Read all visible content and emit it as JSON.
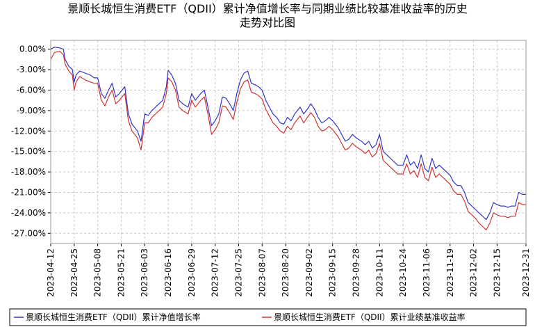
{
  "chart_data": {
    "type": "line",
    "title": "景顺长城恒生消费ETF（QDII）累计净值增长率与同期业绩比较基准收益率的历史走势对比图",
    "title_lines": [
      "景顺长城恒生消费ETF（QDII）累计净值增长率与同期业绩比较基准收益率的历史",
      "走势对比图"
    ],
    "x_ticks": [
      "2023-04-12",
      "2023-04-25",
      "2023-05-08",
      "2023-05-21",
      "2023-06-03",
      "2023-06-16",
      "2023-06-29",
      "2023-07-12",
      "2023-07-25",
      "2023-08-07",
      "2023-08-20",
      "2023-09-02",
      "2023-09-15",
      "2023-09-28",
      "2023-10-11",
      "2023-10-24",
      "2023-11-06",
      "2023-11-19",
      "2023-12-02",
      "2023-12-15",
      "2023-12-31"
    ],
    "y_ticks": [
      "0.00%",
      "-3.00%",
      "-6.00%",
      "-9.00%",
      "-12.00%",
      "-15.00%",
      "-18.00%",
      "-21.00%",
      "-24.00%",
      "-27.00%"
    ],
    "xlim": [
      "2023-04-12",
      "2023-12-31"
    ],
    "ylim": [
      -28.5,
      1.3
    ],
    "grid": true,
    "legend_position": "bottom",
    "series": [
      {
        "name": "景顺长城恒生消费ETF（QDII）累计净值增长率",
        "color": "#3333cc",
        "points": [
          [
            "2023-04-12",
            0.0
          ],
          [
            "2023-04-14",
            0.3
          ],
          [
            "2023-04-17",
            0.2
          ],
          [
            "2023-04-19",
            0.0
          ],
          [
            "2023-04-20",
            -1.5
          ],
          [
            "2023-04-22",
            -2.5
          ],
          [
            "2023-04-24",
            -3.0
          ],
          [
            "2023-04-25",
            -4.8
          ],
          [
            "2023-04-26",
            -3.8
          ],
          [
            "2023-04-28",
            -3.2
          ],
          [
            "2023-05-01",
            -3.5
          ],
          [
            "2023-05-04",
            -3.8
          ],
          [
            "2023-05-06",
            -4.2
          ],
          [
            "2023-05-08",
            -4.2
          ],
          [
            "2023-05-10",
            -6.5
          ],
          [
            "2023-05-12",
            -7.2
          ],
          [
            "2023-05-14",
            -6.0
          ],
          [
            "2023-05-16",
            -5.0
          ],
          [
            "2023-05-18",
            -7.0
          ],
          [
            "2023-05-20",
            -6.5
          ],
          [
            "2023-05-23",
            -5.5
          ],
          [
            "2023-05-25",
            -9.5
          ],
          [
            "2023-05-27",
            -11.0
          ],
          [
            "2023-05-30",
            -12.0
          ],
          [
            "2023-06-01",
            -13.5
          ],
          [
            "2023-06-03",
            -9.5
          ],
          [
            "2023-06-05",
            -9.7
          ],
          [
            "2023-06-07",
            -9.0
          ],
          [
            "2023-06-09",
            -8.5
          ],
          [
            "2023-06-11",
            -8.0
          ],
          [
            "2023-06-13",
            -7.5
          ],
          [
            "2023-06-15",
            -5.5
          ],
          [
            "2023-06-16",
            -3.1
          ],
          [
            "2023-06-18",
            -3.8
          ],
          [
            "2023-06-20",
            -5.0
          ],
          [
            "2023-06-22",
            -7.5
          ],
          [
            "2023-06-24",
            -8.0
          ],
          [
            "2023-06-27",
            -8.5
          ],
          [
            "2023-06-29",
            -6.5
          ],
          [
            "2023-07-01",
            -7.5
          ],
          [
            "2023-07-04",
            -6.5
          ],
          [
            "2023-07-06",
            -6.0
          ],
          [
            "2023-07-08",
            -8.5
          ],
          [
            "2023-07-10",
            -11.2
          ],
          [
            "2023-07-12",
            -10.5
          ],
          [
            "2023-07-14",
            -9.5
          ],
          [
            "2023-07-16",
            -7.0
          ],
          [
            "2023-07-18",
            -7.2
          ],
          [
            "2023-07-20",
            -8.0
          ],
          [
            "2023-07-22",
            -9.0
          ],
          [
            "2023-07-24",
            -6.5
          ],
          [
            "2023-07-26",
            -4.5
          ],
          [
            "2023-07-28",
            -3.5
          ],
          [
            "2023-07-30",
            -3.2
          ],
          [
            "2023-08-01",
            -5.0
          ],
          [
            "2023-08-03",
            -5.2
          ],
          [
            "2023-08-05",
            -5.5
          ],
          [
            "2023-08-07",
            -6.0
          ],
          [
            "2023-08-09",
            -7.5
          ],
          [
            "2023-08-11",
            -8.5
          ],
          [
            "2023-08-13",
            -9.5
          ],
          [
            "2023-08-15",
            -10.0
          ],
          [
            "2023-08-17",
            -10.8
          ],
          [
            "2023-08-19",
            -11.0
          ],
          [
            "2023-08-21",
            -10.0
          ],
          [
            "2023-08-23",
            -10.5
          ],
          [
            "2023-08-25",
            -9.5
          ],
          [
            "2023-08-28",
            -8.5
          ],
          [
            "2023-08-30",
            -9.5
          ],
          [
            "2023-09-01",
            -8.8
          ],
          [
            "2023-09-03",
            -8.0
          ],
          [
            "2023-09-05",
            -8.8
          ],
          [
            "2023-09-07",
            -10.0
          ],
          [
            "2023-09-09",
            -10.8
          ],
          [
            "2023-09-11",
            -10.5
          ],
          [
            "2023-09-13",
            -10.0
          ],
          [
            "2023-09-15",
            -10.5
          ],
          [
            "2023-09-18",
            -11.5
          ],
          [
            "2023-09-20",
            -12.5
          ],
          [
            "2023-09-22",
            -13.5
          ],
          [
            "2023-09-24",
            -13.2
          ],
          [
            "2023-09-26",
            -12.5
          ],
          [
            "2023-09-28",
            -13.0
          ],
          [
            "2023-10-01",
            -13.5
          ],
          [
            "2023-10-03",
            -14.0
          ],
          [
            "2023-10-05",
            -13.5
          ],
          [
            "2023-10-07",
            -14.5
          ],
          [
            "2023-10-09",
            -14.0
          ],
          [
            "2023-10-11",
            -12.5
          ],
          [
            "2023-10-13",
            -15.0
          ],
          [
            "2023-10-15",
            -15.5
          ],
          [
            "2023-10-17",
            -16.0
          ],
          [
            "2023-10-19",
            -16.5
          ],
          [
            "2023-10-21",
            -17.0
          ],
          [
            "2023-10-24",
            -17.0
          ],
          [
            "2023-10-26",
            -15.5
          ],
          [
            "2023-10-28",
            -17.0
          ],
          [
            "2023-10-30",
            -16.5
          ],
          [
            "2023-11-01",
            -17.5
          ],
          [
            "2023-11-03",
            -15.5
          ],
          [
            "2023-11-05",
            -17.5
          ],
          [
            "2023-11-07",
            -18.0
          ],
          [
            "2023-11-09",
            -16.0
          ],
          [
            "2023-11-11",
            -17.5
          ],
          [
            "2023-11-13",
            -17.0
          ],
          [
            "2023-11-15",
            -17.5
          ],
          [
            "2023-11-17",
            -18.0
          ],
          [
            "2023-11-19",
            -18.5
          ],
          [
            "2023-11-21",
            -19.5
          ],
          [
            "2023-11-23",
            -20.0
          ],
          [
            "2023-11-25",
            -20.0
          ],
          [
            "2023-11-27",
            -21.0
          ],
          [
            "2023-11-29",
            -22.5
          ],
          [
            "2023-12-01",
            -23.0
          ],
          [
            "2023-12-03",
            -23.5
          ],
          [
            "2023-12-05",
            -24.0
          ],
          [
            "2023-12-07",
            -24.5
          ],
          [
            "2023-12-09",
            -25.0
          ],
          [
            "2023-12-11",
            -24.0
          ],
          [
            "2023-12-13",
            -22.5
          ],
          [
            "2023-12-15",
            -22.8
          ],
          [
            "2023-12-17",
            -23.0
          ],
          [
            "2023-12-19",
            -23.0
          ],
          [
            "2023-12-21",
            -23.2
          ],
          [
            "2023-12-23",
            -23.0
          ],
          [
            "2023-12-25",
            -23.0
          ],
          [
            "2023-12-27",
            -21.0
          ],
          [
            "2023-12-29",
            -21.3
          ],
          [
            "2023-12-31",
            -21.3
          ]
        ]
      },
      {
        "name": "景顺长城恒生消费ETF（QDII）累计业绩基准收益率",
        "color": "#cc3333",
        "points": [
          [
            "2023-04-12",
            -1.5
          ],
          [
            "2023-04-14",
            -0.5
          ],
          [
            "2023-04-17",
            -0.3
          ],
          [
            "2023-04-19",
            -0.8
          ],
          [
            "2023-04-20",
            -2.2
          ],
          [
            "2023-04-22",
            -3.2
          ],
          [
            "2023-04-24",
            -3.8
          ],
          [
            "2023-04-25",
            -6.0
          ],
          [
            "2023-04-26",
            -4.8
          ],
          [
            "2023-04-28",
            -4.0
          ],
          [
            "2023-05-01",
            -4.5
          ],
          [
            "2023-05-04",
            -4.8
          ],
          [
            "2023-05-06",
            -5.0
          ],
          [
            "2023-05-08",
            -5.0
          ],
          [
            "2023-05-10",
            -7.5
          ],
          [
            "2023-05-12",
            -8.3
          ],
          [
            "2023-05-14",
            -7.0
          ],
          [
            "2023-05-16",
            -6.0
          ],
          [
            "2023-05-18",
            -8.0
          ],
          [
            "2023-05-20",
            -7.5
          ],
          [
            "2023-05-23",
            -6.5
          ],
          [
            "2023-05-25",
            -10.5
          ],
          [
            "2023-05-27",
            -12.0
          ],
          [
            "2023-05-30",
            -13.0
          ],
          [
            "2023-06-01",
            -14.8
          ],
          [
            "2023-06-03",
            -10.8
          ],
          [
            "2023-06-05",
            -10.8
          ],
          [
            "2023-06-07",
            -10.0
          ],
          [
            "2023-06-09",
            -9.5
          ],
          [
            "2023-06-11",
            -9.0
          ],
          [
            "2023-06-13",
            -8.5
          ],
          [
            "2023-06-15",
            -6.5
          ],
          [
            "2023-06-16",
            -4.2
          ],
          [
            "2023-06-18",
            -4.8
          ],
          [
            "2023-06-20",
            -6.0
          ],
          [
            "2023-06-22",
            -8.5
          ],
          [
            "2023-06-24",
            -9.0
          ],
          [
            "2023-06-27",
            -9.5
          ],
          [
            "2023-06-29",
            -7.5
          ],
          [
            "2023-07-01",
            -8.5
          ],
          [
            "2023-07-04",
            -7.5
          ],
          [
            "2023-07-06",
            -7.0
          ],
          [
            "2023-07-08",
            -9.5
          ],
          [
            "2023-07-10",
            -12.5
          ],
          [
            "2023-07-12",
            -11.8
          ],
          [
            "2023-07-14",
            -10.8
          ],
          [
            "2023-07-16",
            -8.3
          ],
          [
            "2023-07-18",
            -8.5
          ],
          [
            "2023-07-20",
            -9.3
          ],
          [
            "2023-07-22",
            -10.3
          ],
          [
            "2023-07-24",
            -7.8
          ],
          [
            "2023-07-26",
            -5.8
          ],
          [
            "2023-07-28",
            -4.8
          ],
          [
            "2023-07-30",
            -4.5
          ],
          [
            "2023-08-01",
            -6.3
          ],
          [
            "2023-08-03",
            -6.5
          ],
          [
            "2023-08-05",
            -6.8
          ],
          [
            "2023-08-07",
            -7.3
          ],
          [
            "2023-08-09",
            -8.8
          ],
          [
            "2023-08-11",
            -9.8
          ],
          [
            "2023-08-13",
            -10.8
          ],
          [
            "2023-08-15",
            -11.3
          ],
          [
            "2023-08-17",
            -12.0
          ],
          [
            "2023-08-19",
            -12.3
          ],
          [
            "2023-08-21",
            -11.3
          ],
          [
            "2023-08-23",
            -11.8
          ],
          [
            "2023-08-25",
            -10.8
          ],
          [
            "2023-08-28",
            -9.8
          ],
          [
            "2023-08-30",
            -10.8
          ],
          [
            "2023-09-01",
            -10.0
          ],
          [
            "2023-09-03",
            -9.3
          ],
          [
            "2023-09-05",
            -10.0
          ],
          [
            "2023-09-07",
            -11.3
          ],
          [
            "2023-09-09",
            -12.0
          ],
          [
            "2023-09-11",
            -11.8
          ],
          [
            "2023-09-13",
            -11.3
          ],
          [
            "2023-09-15",
            -11.8
          ],
          [
            "2023-09-18",
            -12.8
          ],
          [
            "2023-09-20",
            -13.8
          ],
          [
            "2023-09-22",
            -14.8
          ],
          [
            "2023-09-24",
            -14.5
          ],
          [
            "2023-09-26",
            -13.8
          ],
          [
            "2023-09-28",
            -14.3
          ],
          [
            "2023-10-01",
            -14.8
          ],
          [
            "2023-10-03",
            -15.3
          ],
          [
            "2023-10-05",
            -14.8
          ],
          [
            "2023-10-07",
            -15.8
          ],
          [
            "2023-10-09",
            -15.3
          ],
          [
            "2023-10-11",
            -13.8
          ],
          [
            "2023-10-13",
            -16.3
          ],
          [
            "2023-10-15",
            -16.8
          ],
          [
            "2023-10-17",
            -17.3
          ],
          [
            "2023-10-19",
            -17.8
          ],
          [
            "2023-10-21",
            -18.3
          ],
          [
            "2023-10-24",
            -18.3
          ],
          [
            "2023-10-26",
            -16.8
          ],
          [
            "2023-10-28",
            -18.3
          ],
          [
            "2023-10-30",
            -17.8
          ],
          [
            "2023-11-01",
            -18.8
          ],
          [
            "2023-11-03",
            -16.8
          ],
          [
            "2023-11-05",
            -18.8
          ],
          [
            "2023-11-07",
            -19.3
          ],
          [
            "2023-11-09",
            -17.3
          ],
          [
            "2023-11-11",
            -18.8
          ],
          [
            "2023-11-13",
            -18.3
          ],
          [
            "2023-11-15",
            -18.8
          ],
          [
            "2023-11-17",
            -19.3
          ],
          [
            "2023-11-19",
            -19.8
          ],
          [
            "2023-11-21",
            -20.8
          ],
          [
            "2023-11-23",
            -21.3
          ],
          [
            "2023-11-25",
            -21.3
          ],
          [
            "2023-11-27",
            -22.3
          ],
          [
            "2023-11-29",
            -23.8
          ],
          [
            "2023-12-01",
            -24.3
          ],
          [
            "2023-12-03",
            -24.8
          ],
          [
            "2023-12-05",
            -25.5
          ],
          [
            "2023-12-07",
            -26.0
          ],
          [
            "2023-12-09",
            -26.5
          ],
          [
            "2023-12-11",
            -25.5
          ],
          [
            "2023-12-13",
            -24.0
          ],
          [
            "2023-12-15",
            -24.3
          ],
          [
            "2023-12-17",
            -24.5
          ],
          [
            "2023-12-19",
            -24.5
          ],
          [
            "2023-12-21",
            -24.7
          ],
          [
            "2023-12-23",
            -24.5
          ],
          [
            "2023-12-25",
            -24.5
          ],
          [
            "2023-12-27",
            -22.5
          ],
          [
            "2023-12-29",
            -22.8
          ],
          [
            "2023-12-31",
            -22.8
          ]
        ]
      }
    ]
  }
}
